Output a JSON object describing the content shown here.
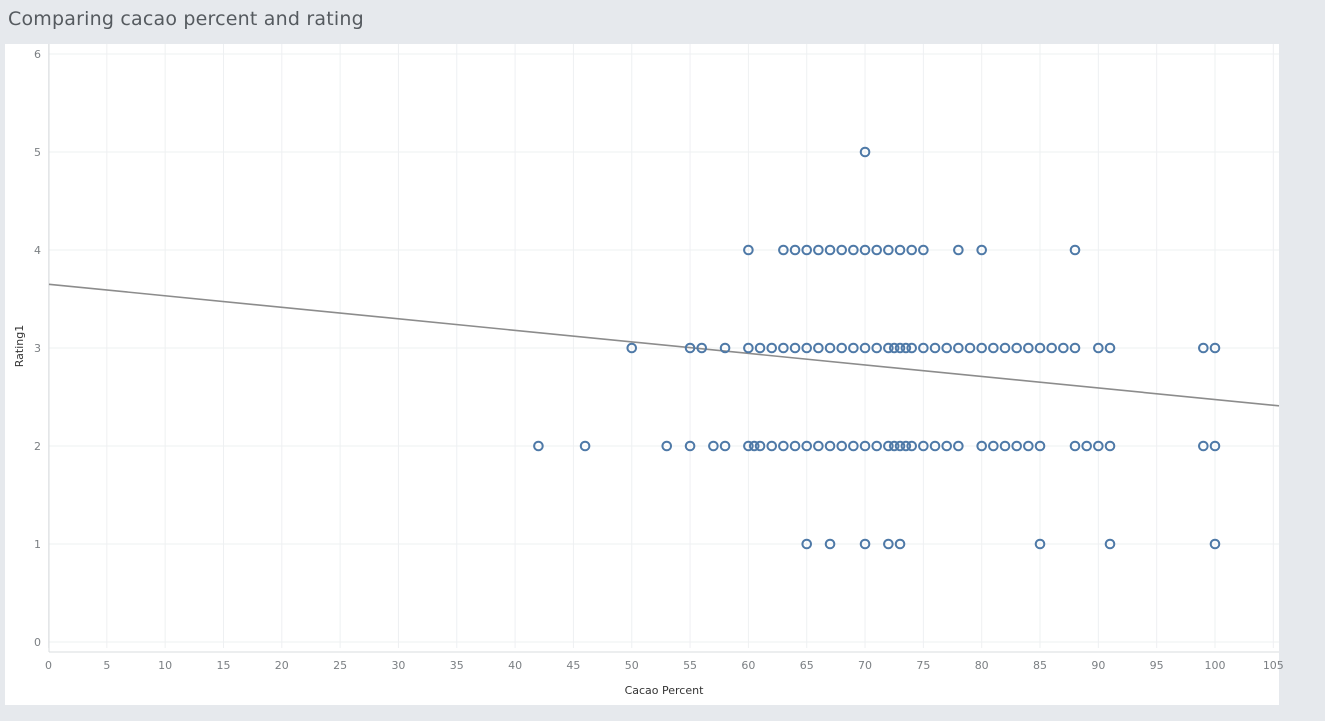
{
  "header": {
    "title": "Comparing cacao percent and rating"
  },
  "chart_data": {
    "type": "scatter",
    "title": "Comparing cacao percent and rating",
    "xlabel": "Cacao Percent",
    "ylabel": "Rating1",
    "xlim": [
      0,
      105
    ],
    "ylim": [
      0,
      6
    ],
    "x_ticks": [
      0,
      5,
      10,
      15,
      20,
      25,
      30,
      35,
      40,
      45,
      50,
      55,
      60,
      65,
      70,
      75,
      80,
      85,
      90,
      95,
      100,
      105
    ],
    "y_ticks": [
      0,
      1,
      2,
      3,
      4,
      5,
      6
    ],
    "grid": true,
    "marker_color": "#4e79a7",
    "trend_color": "#8c8c8c",
    "trend_line": {
      "x": [
        0,
        105
      ],
      "y": [
        3.65,
        2.41
      ]
    },
    "series": [
      {
        "points": [
          [
            70,
            5
          ],
          [
            60,
            4
          ],
          [
            63,
            4
          ],
          [
            64,
            4
          ],
          [
            65,
            4
          ],
          [
            66,
            4
          ],
          [
            67,
            4
          ],
          [
            68,
            4
          ],
          [
            69,
            4
          ],
          [
            70,
            4
          ],
          [
            71,
            4
          ],
          [
            72,
            4
          ],
          [
            73,
            4
          ],
          [
            74,
            4
          ],
          [
            75,
            4
          ],
          [
            78,
            4
          ],
          [
            80,
            4
          ],
          [
            88,
            4
          ],
          [
            50,
            3
          ],
          [
            55,
            3
          ],
          [
            56,
            3
          ],
          [
            58,
            3
          ],
          [
            60,
            3
          ],
          [
            61,
            3
          ],
          [
            62,
            3
          ],
          [
            63,
            3
          ],
          [
            64,
            3
          ],
          [
            65,
            3
          ],
          [
            66,
            3
          ],
          [
            67,
            3
          ],
          [
            68,
            3
          ],
          [
            69,
            3
          ],
          [
            70,
            3
          ],
          [
            71,
            3
          ],
          [
            72,
            3
          ],
          [
            72.5,
            3
          ],
          [
            73,
            3
          ],
          [
            73.5,
            3
          ],
          [
            74,
            3
          ],
          [
            75,
            3
          ],
          [
            76,
            3
          ],
          [
            77,
            3
          ],
          [
            78,
            3
          ],
          [
            79,
            3
          ],
          [
            80,
            3
          ],
          [
            81,
            3
          ],
          [
            82,
            3
          ],
          [
            83,
            3
          ],
          [
            84,
            3
          ],
          [
            85,
            3
          ],
          [
            86,
            3
          ],
          [
            87,
            3
          ],
          [
            88,
            3
          ],
          [
            90,
            3
          ],
          [
            91,
            3
          ],
          [
            99,
            3
          ],
          [
            100,
            3
          ],
          [
            42,
            2
          ],
          [
            46,
            2
          ],
          [
            53,
            2
          ],
          [
            55,
            2
          ],
          [
            57,
            2
          ],
          [
            58,
            2
          ],
          [
            60,
            2
          ],
          [
            60.5,
            2
          ],
          [
            61,
            2
          ],
          [
            62,
            2
          ],
          [
            63,
            2
          ],
          [
            64,
            2
          ],
          [
            65,
            2
          ],
          [
            66,
            2
          ],
          [
            67,
            2
          ],
          [
            68,
            2
          ],
          [
            69,
            2
          ],
          [
            70,
            2
          ],
          [
            71,
            2
          ],
          [
            72,
            2
          ],
          [
            72.5,
            2
          ],
          [
            73,
            2
          ],
          [
            73.5,
            2
          ],
          [
            74,
            2
          ],
          [
            75,
            2
          ],
          [
            76,
            2
          ],
          [
            77,
            2
          ],
          [
            78,
            2
          ],
          [
            80,
            2
          ],
          [
            81,
            2
          ],
          [
            82,
            2
          ],
          [
            83,
            2
          ],
          [
            84,
            2
          ],
          [
            85,
            2
          ],
          [
            88,
            2
          ],
          [
            89,
            2
          ],
          [
            90,
            2
          ],
          [
            91,
            2
          ],
          [
            99,
            2
          ],
          [
            100,
            2
          ],
          [
            65,
            1
          ],
          [
            67,
            1
          ],
          [
            70,
            1
          ],
          [
            72,
            1
          ],
          [
            73,
            1
          ],
          [
            85,
            1
          ],
          [
            91,
            1
          ],
          [
            100,
            1
          ]
        ]
      }
    ]
  }
}
